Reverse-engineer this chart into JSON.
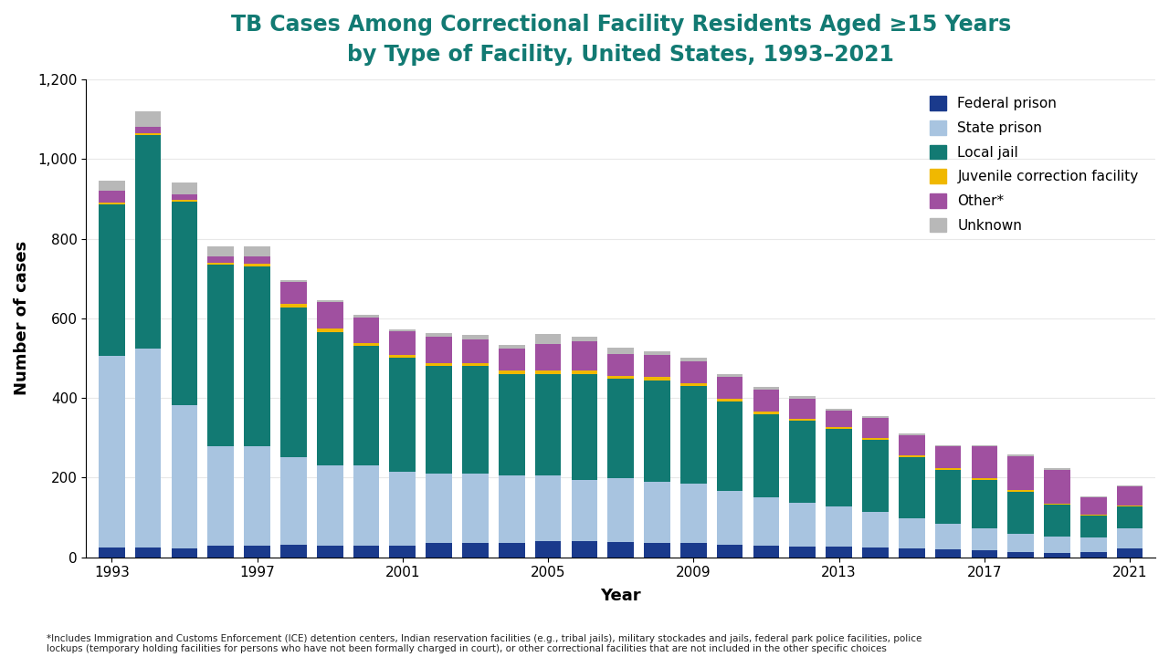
{
  "years": [
    1993,
    1994,
    1995,
    1996,
    1997,
    1998,
    1999,
    2000,
    2001,
    2002,
    2003,
    2004,
    2005,
    2006,
    2007,
    2008,
    2009,
    2010,
    2011,
    2012,
    2013,
    2014,
    2015,
    2016,
    2017,
    2018,
    2019,
    2020,
    2021
  ],
  "federal_prison": [
    25,
    25,
    22,
    30,
    30,
    32,
    30,
    30,
    30,
    35,
    35,
    35,
    40,
    40,
    38,
    35,
    35,
    32,
    30,
    28,
    28,
    25,
    22,
    20,
    18,
    14,
    12,
    13,
    22
  ],
  "state_prison": [
    480,
    500,
    360,
    250,
    250,
    220,
    200,
    200,
    185,
    175,
    175,
    170,
    165,
    155,
    160,
    155,
    150,
    135,
    120,
    110,
    100,
    90,
    75,
    65,
    55,
    45,
    40,
    36,
    50
  ],
  "local_jail": [
    380,
    535,
    510,
    455,
    450,
    375,
    335,
    300,
    285,
    270,
    270,
    255,
    255,
    265,
    250,
    255,
    245,
    225,
    210,
    205,
    195,
    180,
    155,
    135,
    120,
    105,
    80,
    56,
    56
  ],
  "juvenile": [
    5,
    5,
    5,
    5,
    8,
    10,
    10,
    8,
    8,
    8,
    8,
    8,
    10,
    8,
    8,
    8,
    6,
    5,
    5,
    5,
    5,
    5,
    5,
    3,
    5,
    5,
    3,
    2,
    2
  ],
  "other": [
    30,
    15,
    15,
    15,
    18,
    55,
    65,
    65,
    60,
    65,
    60,
    55,
    65,
    75,
    55,
    55,
    55,
    55,
    55,
    50,
    40,
    50,
    50,
    55,
    80,
    85,
    85,
    43,
    49
  ],
  "unknown": [
    25,
    40,
    30,
    25,
    25,
    5,
    5,
    5,
    5,
    10,
    10,
    10,
    25,
    10,
    15,
    10,
    10,
    8,
    8,
    8,
    5,
    5,
    5,
    4,
    4,
    4,
    4,
    4,
    1
  ],
  "colors": {
    "federal_prison": "#1A3A8C",
    "state_prison": "#A8C4E0",
    "local_jail": "#127A73",
    "juvenile": "#F0B800",
    "other": "#A050A0",
    "unknown": "#B8B8B8"
  },
  "title_line1": "TB Cases Among Correctional Facility Residents Aged ≥15 Years",
  "title_line2": "by Type of Facility, United States, 1993–2021",
  "xlabel": "Year",
  "ylabel": "Number of cases",
  "ylim": [
    0,
    1200
  ],
  "yticks": [
    0,
    200,
    400,
    600,
    800,
    1000,
    1200
  ],
  "xtick_years": [
    1993,
    1997,
    2001,
    2005,
    2009,
    2013,
    2017,
    2021
  ],
  "legend_labels": [
    "Federal prison",
    "State prison",
    "Local jail",
    "Juvenile correction facility",
    "Other*",
    "Unknown"
  ],
  "footnote_line1": "*Includes Immigration and Customs Enforcement (ICE) detention centers, Indian reservation facilities (e.g., tribal jails), military stockades and jails, federal park police facilities, police",
  "footnote_line2": "lockups (temporary holding facilities for persons who have not been formally charged in court), or other correctional facilities that are not included in the other specific choices",
  "title_color": "#127A73",
  "bar_colors_bottom": [
    "#1A3A8C",
    "#2E86AB",
    "#A050A0",
    "#E05020",
    "#F0B800",
    "#127A73"
  ]
}
